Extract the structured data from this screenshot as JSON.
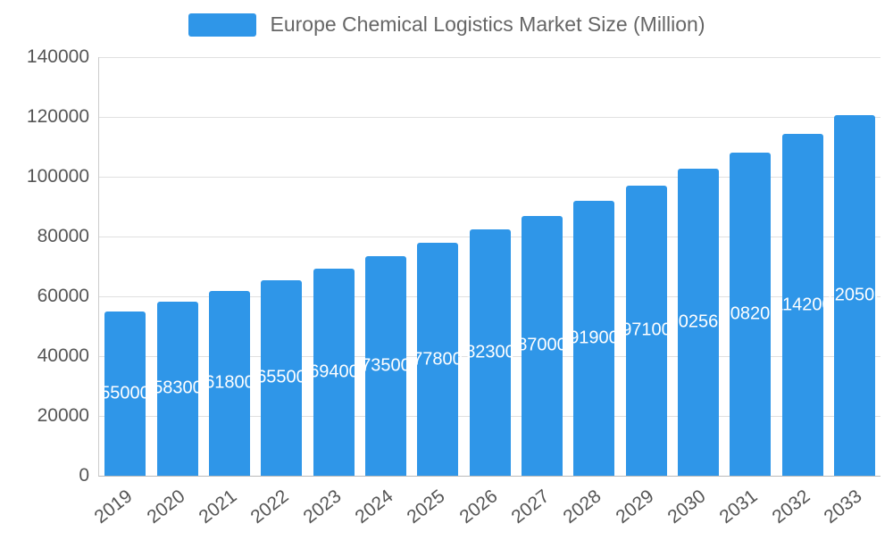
{
  "chart_data": {
    "type": "bar",
    "title": "Europe Chemical Logistics Market Size (Million)",
    "categories": [
      "2019",
      "2020",
      "2021",
      "2022",
      "2023",
      "2024",
      "2025",
      "2026",
      "2027",
      "2028",
      "2029",
      "2030",
      "2031",
      "2032",
      "2033"
    ],
    "values": [
      55000,
      58300,
      61800,
      65500,
      69400,
      73500,
      77800,
      82300,
      87000,
      91900,
      97100,
      102560,
      108200,
      114200,
      120500
    ],
    "xlabel": "",
    "ylabel": "",
    "ylim": [
      0,
      140000
    ],
    "yticks": [
      0,
      20000,
      40000,
      60000,
      80000,
      100000,
      120000,
      140000
    ],
    "grid": true,
    "legend_position": "top",
    "bar_color": "#2f96e8",
    "value_label_color": "#ffffff",
    "axis_text_color": "#555555",
    "grid_color": "#e0e0e0"
  }
}
